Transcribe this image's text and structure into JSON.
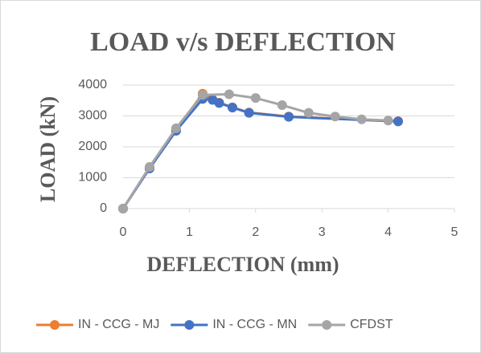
{
  "chart_data": {
    "type": "line",
    "title": "LOAD v/s DEFLECTION",
    "x_label": "DEFLECTION (mm)",
    "y_label": "LOAD (kN)",
    "xlim": [
      0,
      5
    ],
    "xticks": [
      0,
      1,
      2,
      3,
      4,
      5
    ],
    "ylim": [
      0,
      4000
    ],
    "yticks": [
      0,
      1000,
      2000,
      3000,
      4000
    ],
    "grid": true,
    "legend": "bottom",
    "series": [
      {
        "name": "IN - CCG - MJ",
        "color": "#ed7d31",
        "x": [
          0,
          0.4,
          0.8,
          1.2,
          1.35,
          1.45,
          1.65,
          1.9,
          2.5,
          4.15
        ],
        "values": [
          0,
          1320,
          2550,
          3720,
          3530,
          3430,
          3280,
          3110,
          2980,
          2830
        ]
      },
      {
        "name": "IN - CCG - MN",
        "color": "#4472c4",
        "x": [
          0,
          0.4,
          0.8,
          1.2,
          1.35,
          1.45,
          1.65,
          1.9,
          2.5,
          4.15
        ],
        "values": [
          0,
          1300,
          2520,
          3550,
          3520,
          3420,
          3270,
          3100,
          2970,
          2820
        ]
      },
      {
        "name": "CFDST",
        "color": "#a5a5a5",
        "x": [
          0,
          0.4,
          0.8,
          1.2,
          1.6,
          2.0,
          2.4,
          2.8,
          3.2,
          3.6,
          4.0
        ],
        "values": [
          0,
          1350,
          2600,
          3680,
          3700,
          3580,
          3350,
          3100,
          2980,
          2890,
          2850
        ]
      }
    ]
  }
}
